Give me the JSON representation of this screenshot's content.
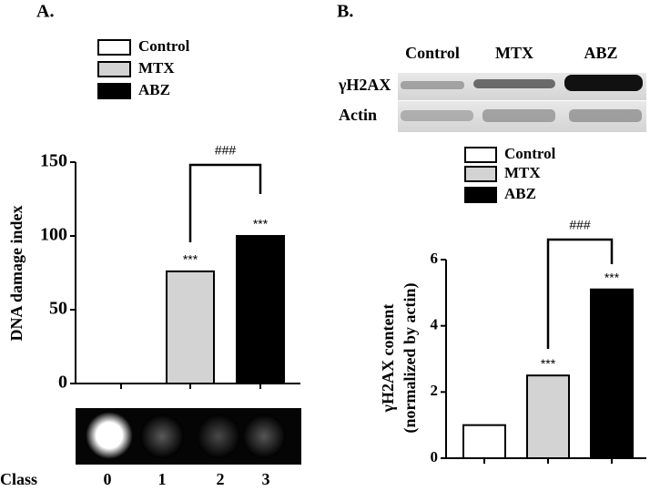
{
  "chart_data": [
    {
      "type": "bar",
      "title": "A.",
      "ylabel": "DNA damage index",
      "categories": [
        "Control",
        "MTX",
        "ABZ"
      ],
      "values": [
        0,
        76,
        100
      ],
      "colors": [
        "#ffffff",
        "#d3d3d3",
        "#000000"
      ],
      "ylim": [
        0,
        150
      ],
      "yticks": [
        0,
        50,
        100,
        150
      ],
      "significance": "***",
      "comparison": "###",
      "class_label": "Class",
      "classes": [
        "0",
        "1",
        "2",
        "3"
      ]
    },
    {
      "type": "bar",
      "title": "B.",
      "ylabel": [
        "γH2AX content",
        "(normalized by actin)"
      ],
      "categories": [
        "Control",
        "MTX",
        "ABZ"
      ],
      "values": [
        1,
        2.5,
        5.1
      ],
      "colors": [
        "#ffffff",
        "#d3d3d3",
        "#000000"
      ],
      "ylim": [
        0,
        6
      ],
      "yticks": [
        0,
        2,
        4,
        6
      ],
      "significance": "***",
      "comparison": "###",
      "blot_lanes": [
        "Control",
        "MTX",
        "ABZ"
      ],
      "blot_rows": [
        "γH2AX",
        "Actin"
      ]
    }
  ]
}
